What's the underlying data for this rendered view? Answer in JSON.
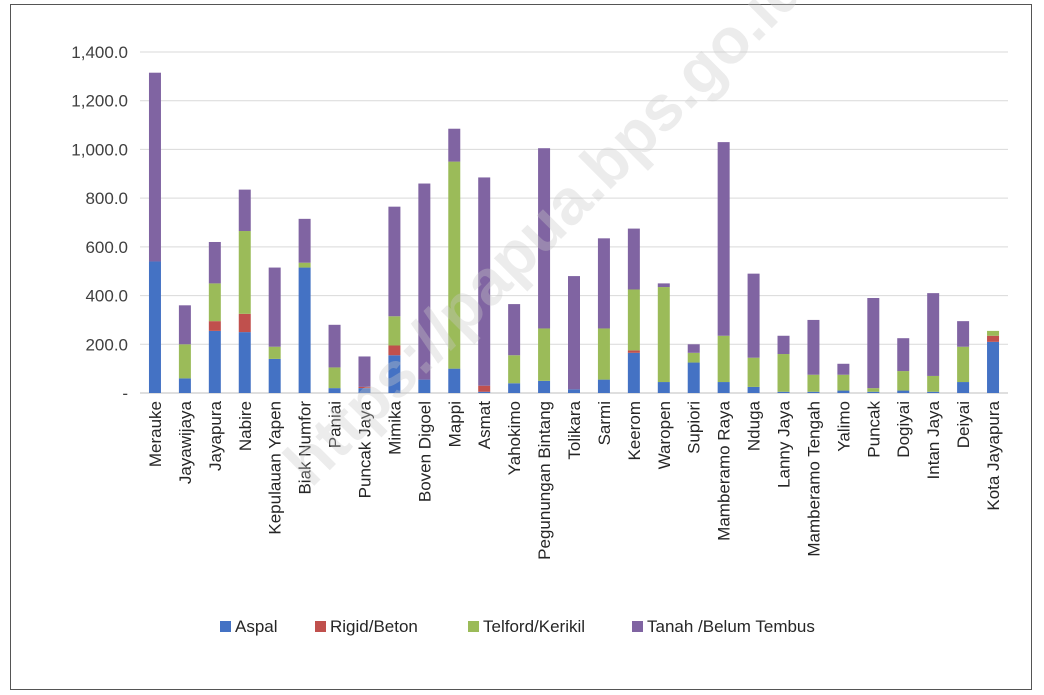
{
  "watermark": "https://papua.bps.go.id",
  "chart_data": {
    "type": "bar",
    "stacked": true,
    "categories": [
      "Merauke",
      "Jayawijaya",
      "Jayapura",
      "Nabire",
      "Kepulauan Yapen",
      "Biak Numfor",
      "Paniai",
      "Puncak Jaya",
      "Mimika",
      "Boven Digoel",
      "Mappi",
      "Asmat",
      "Yahokimo",
      "Pegunungan Bintang",
      "Tolikara",
      "Sarmi",
      "Keerom",
      "Waropen",
      "Supiori",
      "Mamberamo Raya",
      "Nduga",
      "Lanny Jaya",
      "Mamberamo Tengah",
      "Yalimo",
      "Puncak",
      "Dogiyai",
      "Intan Jaya",
      "Deiyai",
      "Kota Jayapura"
    ],
    "series": [
      {
        "name": "Aspal",
        "color": "#4472c4",
        "values": [
          540,
          60,
          255,
          250,
          140,
          515,
          20,
          20,
          155,
          55,
          100,
          5,
          40,
          50,
          15,
          55,
          165,
          45,
          125,
          45,
          25,
          5,
          5,
          10,
          5,
          10,
          5,
          45,
          210
        ]
      },
      {
        "name": "Rigid/Beton",
        "color": "#c0504d",
        "values": [
          0,
          0,
          40,
          75,
          0,
          0,
          0,
          5,
          40,
          0,
          0,
          25,
          0,
          0,
          0,
          0,
          10,
          0,
          0,
          0,
          0,
          0,
          0,
          0,
          0,
          0,
          0,
          0,
          25
        ]
      },
      {
        "name": "Telford/Kerikil",
        "color": "#9bbb59",
        "values": [
          0,
          140,
          155,
          340,
          50,
          20,
          85,
          0,
          120,
          0,
          850,
          0,
          115,
          215,
          0,
          210,
          250,
          390,
          40,
          190,
          120,
          155,
          70,
          65,
          15,
          80,
          65,
          145,
          20
        ]
      },
      {
        "name": "Tanah /Belum Tembus",
        "color": "#8064a2",
        "values": [
          775,
          160,
          170,
          170,
          325,
          180,
          175,
          125,
          450,
          805,
          135,
          855,
          210,
          740,
          465,
          370,
          250,
          15,
          35,
          795,
          345,
          75,
          225,
          45,
          370,
          135,
          340,
          105,
          0
        ]
      }
    ],
    "y_ticks": [
      "-",
      "200.0",
      "400.0",
      "600.0",
      "800.0",
      "1,000.0",
      "1,200.0",
      "1,400.0"
    ],
    "ylim": [
      0,
      1400
    ],
    "grid": true,
    "legend_position": "bottom",
    "title": "",
    "xlabel": "",
    "ylabel": ""
  }
}
